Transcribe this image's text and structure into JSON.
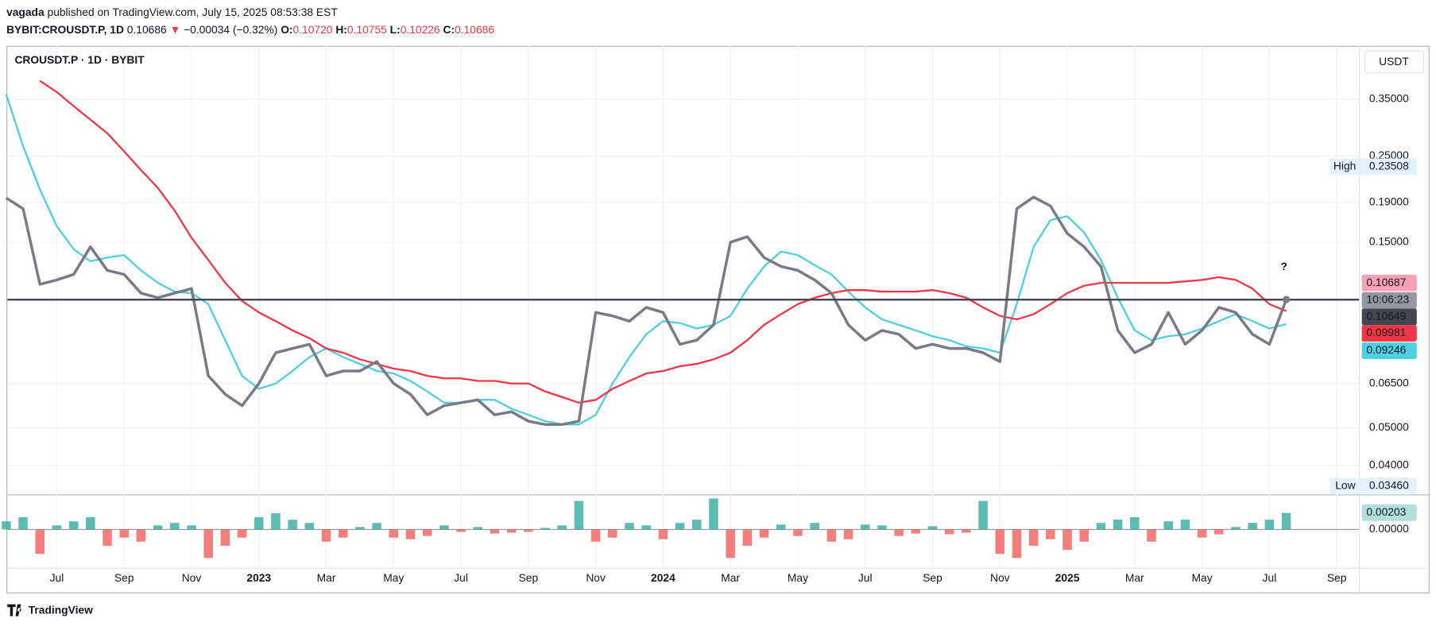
{
  "header": {
    "author": "vagada",
    "published": "published on TradingView.com, July 15, 2025 08:53:38 EST",
    "symbol": "BYBIT:CROUSDT.P, 1D",
    "last": "0.10686",
    "arrow": "▼",
    "change": "−0.00034 (−0.32%)",
    "o_label": "O:",
    "o": "0.10720",
    "h_label": "H:",
    "h": "0.10755",
    "l_label": "L:",
    "l": "0.10226",
    "c_label": "C:",
    "c": "0.10686"
  },
  "footer": {
    "brand": "TradingView"
  },
  "chart_data": [
    {
      "type": "line",
      "title": "CROUSDT.P · 1D · BYBIT",
      "currency": "USDT",
      "log_scale": true,
      "grid": true,
      "categories": [
        null,
        null,
        null,
        "Jul",
        null,
        null,
        null,
        "Sep",
        null,
        null,
        null,
        "Nov",
        null,
        null,
        null,
        "2023",
        null,
        null,
        null,
        "Mar",
        null,
        null,
        null,
        "May",
        null,
        null,
        null,
        "Jul",
        null,
        null,
        null,
        "Sep",
        null,
        null,
        null,
        "Nov",
        null,
        null,
        null,
        "2024",
        null,
        null,
        null,
        "Mar",
        null,
        null,
        null,
        "May",
        null,
        null,
        null,
        "Jul",
        null,
        null,
        null,
        "Sep",
        null,
        null,
        null,
        "Nov",
        null,
        null,
        null,
        "2025",
        null,
        null,
        null,
        "Mar",
        null,
        null,
        null,
        "May",
        null,
        null,
        null,
        "Jul",
        null,
        null,
        null,
        "Sep"
      ],
      "series": [
        {
          "name": "CROUSDT.P",
          "color": "#787b86",
          "values": [
            0.195,
            0.183,
            0.117,
            0.12,
            0.124,
            0.146,
            0.127,
            0.124,
            0.111,
            0.108,
            0.111,
            0.114,
            0.068,
            0.061,
            0.057,
            0.065,
            0.078,
            0.08,
            0.082,
            0.068,
            0.07,
            0.07,
            0.074,
            0.065,
            0.061,
            0.054,
            0.057,
            0.058,
            0.059,
            0.054,
            0.055,
            0.052,
            0.051,
            0.051,
            0.052,
            0.099,
            0.097,
            0.094,
            0.102,
            0.099,
            0.082,
            0.084,
            0.092,
            0.15,
            0.155,
            0.137,
            0.13,
            0.127,
            0.12,
            0.111,
            0.092,
            0.084,
            0.089,
            0.087,
            0.08,
            0.082,
            0.08,
            0.08,
            0.078,
            0.074,
            0.183,
            0.196,
            0.186,
            0.158,
            0.146,
            0.13,
            0.089,
            0.078,
            0.082,
            0.099,
            0.082,
            0.089,
            0.102,
            0.099,
            0.087,
            0.082,
            0.10686,
            null,
            null,
            null
          ]
        },
        {
          "name": "MA 200",
          "color": "#f23645",
          "values": [
            null,
            null,
            0.39,
            0.365,
            0.336,
            0.31,
            0.286,
            0.257,
            0.23,
            0.207,
            0.181,
            0.154,
            0.135,
            0.118,
            0.106,
            0.099,
            0.094,
            0.089,
            0.085,
            0.08,
            0.078,
            0.075,
            0.073,
            0.071,
            0.07,
            0.068,
            0.067,
            0.067,
            0.066,
            0.066,
            0.065,
            0.065,
            0.062,
            0.06,
            0.058,
            0.059,
            0.063,
            0.066,
            0.069,
            0.07,
            0.072,
            0.073,
            0.075,
            0.078,
            0.084,
            0.092,
            0.098,
            0.104,
            0.108,
            0.111,
            0.113,
            0.113,
            0.112,
            0.112,
            0.112,
            0.113,
            0.111,
            0.108,
            0.102,
            0.097,
            0.095,
            0.098,
            0.104,
            0.111,
            0.116,
            0.118,
            0.118,
            0.118,
            0.118,
            0.118,
            0.119,
            0.12,
            0.122,
            0.12,
            0.114,
            0.104,
            0.09981,
            null,
            null,
            null
          ]
        },
        {
          "name": "MA 50",
          "color": "#4dd0e1",
          "values": [
            0.36,
            0.265,
            0.205,
            0.165,
            0.144,
            0.134,
            0.137,
            0.139,
            0.127,
            0.118,
            0.112,
            0.111,
            0.104,
            0.084,
            0.068,
            0.063,
            0.065,
            0.07,
            0.076,
            0.08,
            0.076,
            0.073,
            0.07,
            0.069,
            0.066,
            0.062,
            0.058,
            0.058,
            0.059,
            0.059,
            0.056,
            0.054,
            0.052,
            0.051,
            0.051,
            0.054,
            0.065,
            0.076,
            0.087,
            0.094,
            0.093,
            0.09,
            0.092,
            0.097,
            0.114,
            0.13,
            0.142,
            0.139,
            0.131,
            0.124,
            0.112,
            0.102,
            0.095,
            0.092,
            0.089,
            0.086,
            0.084,
            0.081,
            0.08,
            0.078,
            0.104,
            0.146,
            0.171,
            0.175,
            0.159,
            0.135,
            0.108,
            0.089,
            0.084,
            0.086,
            0.087,
            0.09,
            0.094,
            0.098,
            0.094,
            0.09,
            0.09246,
            null,
            null,
            null
          ]
        }
      ],
      "hline": 0.1068,
      "hline_color": "#434651",
      "ylim": [
        0.0337,
        0.48
      ],
      "yticks": [
        {
          "value": 0.35,
          "label": "0.35000"
        },
        {
          "value": 0.25,
          "label": "0.25000"
        },
        {
          "value": 0.19,
          "label": "0.19000"
        },
        {
          "value": 0.15,
          "label": "0.15000"
        },
        {
          "value": 0.065,
          "label": "0.06500"
        },
        {
          "value": 0.05,
          "label": "0.05000"
        },
        {
          "value": 0.04,
          "label": "0.04000"
        }
      ],
      "high_label": "High",
      "high": "0.23508",
      "low_label": "Low",
      "low": "0.03460",
      "tags": [
        {
          "label": "0.10687",
          "color": "#f7a1b6"
        },
        {
          "label": "10:06:23",
          "color": "#9598a1"
        },
        {
          "label": "0.10649",
          "color": "#434651"
        },
        {
          "label": "0.09981",
          "color": "#f23645"
        },
        {
          "label": "0.09246",
          "color": "#4dd0e1"
        }
      ],
      "annotation": "?"
    },
    {
      "type": "bar",
      "pos_color": "#26a69a",
      "neg_color": "#ef5350",
      "values": [
        0.001,
        0.0015,
        -0.003,
        0.0005,
        0.001,
        0.0015,
        -0.002,
        -0.001,
        -0.0015,
        0.0005,
        0.0008,
        0.0005,
        -0.0035,
        -0.002,
        -0.001,
        0.0015,
        0.002,
        0.0012,
        0.0008,
        -0.0015,
        -0.001,
        0.0003,
        0.0008,
        -0.001,
        -0.0012,
        -0.0008,
        0.0005,
        -0.0003,
        0.0003,
        -0.0005,
        -0.0004,
        -0.0003,
        0.0002,
        0.0005,
        0.0035,
        -0.0015,
        -0.001,
        0.0008,
        0.0005,
        -0.0012,
        0.0008,
        0.0012,
        0.0038,
        -0.0035,
        -0.002,
        -0.001,
        0.0006,
        -0.0008,
        0.0008,
        -0.0015,
        -0.0012,
        0.0006,
        0.0005,
        -0.0008,
        -0.0005,
        0.0004,
        -0.0006,
        -0.0004,
        0.0035,
        -0.003,
        -0.0035,
        -0.002,
        -0.0012,
        -0.0025,
        -0.0015,
        0.0008,
        0.0012,
        0.0015,
        -0.0015,
        0.001,
        0.0012,
        -0.001,
        -0.0006,
        0.0003,
        0.0008,
        0.0012,
        0.00203
      ],
      "ylim": [
        -0.0047,
        0.0043
      ],
      "yticks": [
        {
          "value": 0,
          "label": "0.00000"
        }
      ],
      "tag": "0.00203"
    }
  ]
}
